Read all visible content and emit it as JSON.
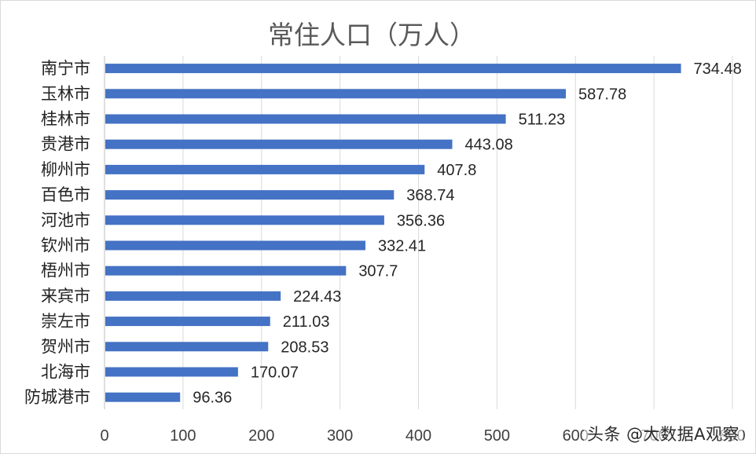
{
  "chart_data": {
    "type": "bar",
    "orientation": "horizontal",
    "title": "常住人口（万人）",
    "categories": [
      "南宁市",
      "玉林市",
      "桂林市",
      "贵港市",
      "柳州市",
      "百色市",
      "河池市",
      "钦州市",
      "梧州市",
      "来宾市",
      "崇左市",
      "贺州市",
      "北海市",
      "防城港市"
    ],
    "values": [
      734.48,
      587.78,
      511.23,
      443.08,
      407.8,
      368.74,
      356.36,
      332.41,
      307.7,
      224.43,
      211.03,
      208.53,
      170.07,
      96.36
    ],
    "value_labels": [
      "734.48",
      "587.78",
      "511.23",
      "443.08",
      "407.8",
      "368.74",
      "356.36",
      "332.41",
      "307.7",
      "224.43",
      "211.03",
      "208.53",
      "170.07",
      "96.36"
    ],
    "xlim": [
      0,
      800
    ],
    "x_ticks": [
      0,
      100,
      200,
      300,
      400,
      500,
      600,
      700,
      800
    ],
    "x_tick_labels": [
      "0",
      "100",
      "200",
      "300",
      "400",
      "500",
      "600",
      "700",
      "800"
    ],
    "grid": true,
    "legend": "none",
    "bar_color": "#4472c4"
  },
  "watermark": "头条 @大数据A观察"
}
